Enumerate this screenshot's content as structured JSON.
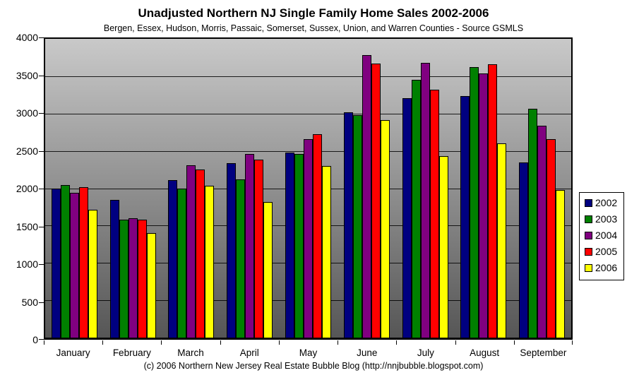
{
  "title": "Unadjusted Northern NJ Single Family Home Sales 2002-2006",
  "subtitle": "Bergen, Essex, Hudson, Morris, Passaic, Somerset, Sussex, Union, and Warren Counties - Source GSMLS",
  "footer": "(c) 2006 Northern New Jersey Real Estate Bubble Blog (http://nnjbubble.blogspot.com)",
  "chart_data": {
    "type": "bar",
    "title": "Unadjusted Northern NJ Single Family Home Sales 2002-2006",
    "subtitle": "Bergen, Essex, Hudson, Morris, Passaic, Somerset, Sussex, Union, and Warren Counties - Source GSMLS",
    "categories": [
      "January",
      "February",
      "March",
      "April",
      "May",
      "June",
      "July",
      "August",
      "September"
    ],
    "series": [
      {
        "name": "2002",
        "color": "#000080",
        "values": [
          2000,
          1840,
          2110,
          2340,
          2480,
          3020,
          3210,
          3230,
          2350
        ]
      },
      {
        "name": "2003",
        "color": "#008000",
        "values": [
          2040,
          1580,
          2000,
          2120,
          2460,
          2980,
          3450,
          3620,
          3060
        ]
      },
      {
        "name": "2004",
        "color": "#800080",
        "values": [
          1940,
          1600,
          2310,
          2460,
          2660,
          3780,
          3680,
          3540,
          2840
        ]
      },
      {
        "name": "2005",
        "color": "#ff0000",
        "values": [
          2010,
          1580,
          2250,
          2380,
          2720,
          3670,
          3320,
          3660,
          2660
        ]
      },
      {
        "name": "2006",
        "color": "#ffff00",
        "values": [
          1710,
          1400,
          2030,
          1820,
          2300,
          2910,
          2430,
          2600,
          1980
        ]
      }
    ],
    "xlabel": "",
    "ylabel": "",
    "ylim": [
      0,
      4000
    ],
    "yticks": [
      0,
      500,
      1000,
      1500,
      2000,
      2500,
      3000,
      3500,
      4000
    ],
    "grid": true,
    "legend_position": "right",
    "plot_gradient_top": "#c9c9c9",
    "plot_gradient_bottom": "#565656"
  }
}
